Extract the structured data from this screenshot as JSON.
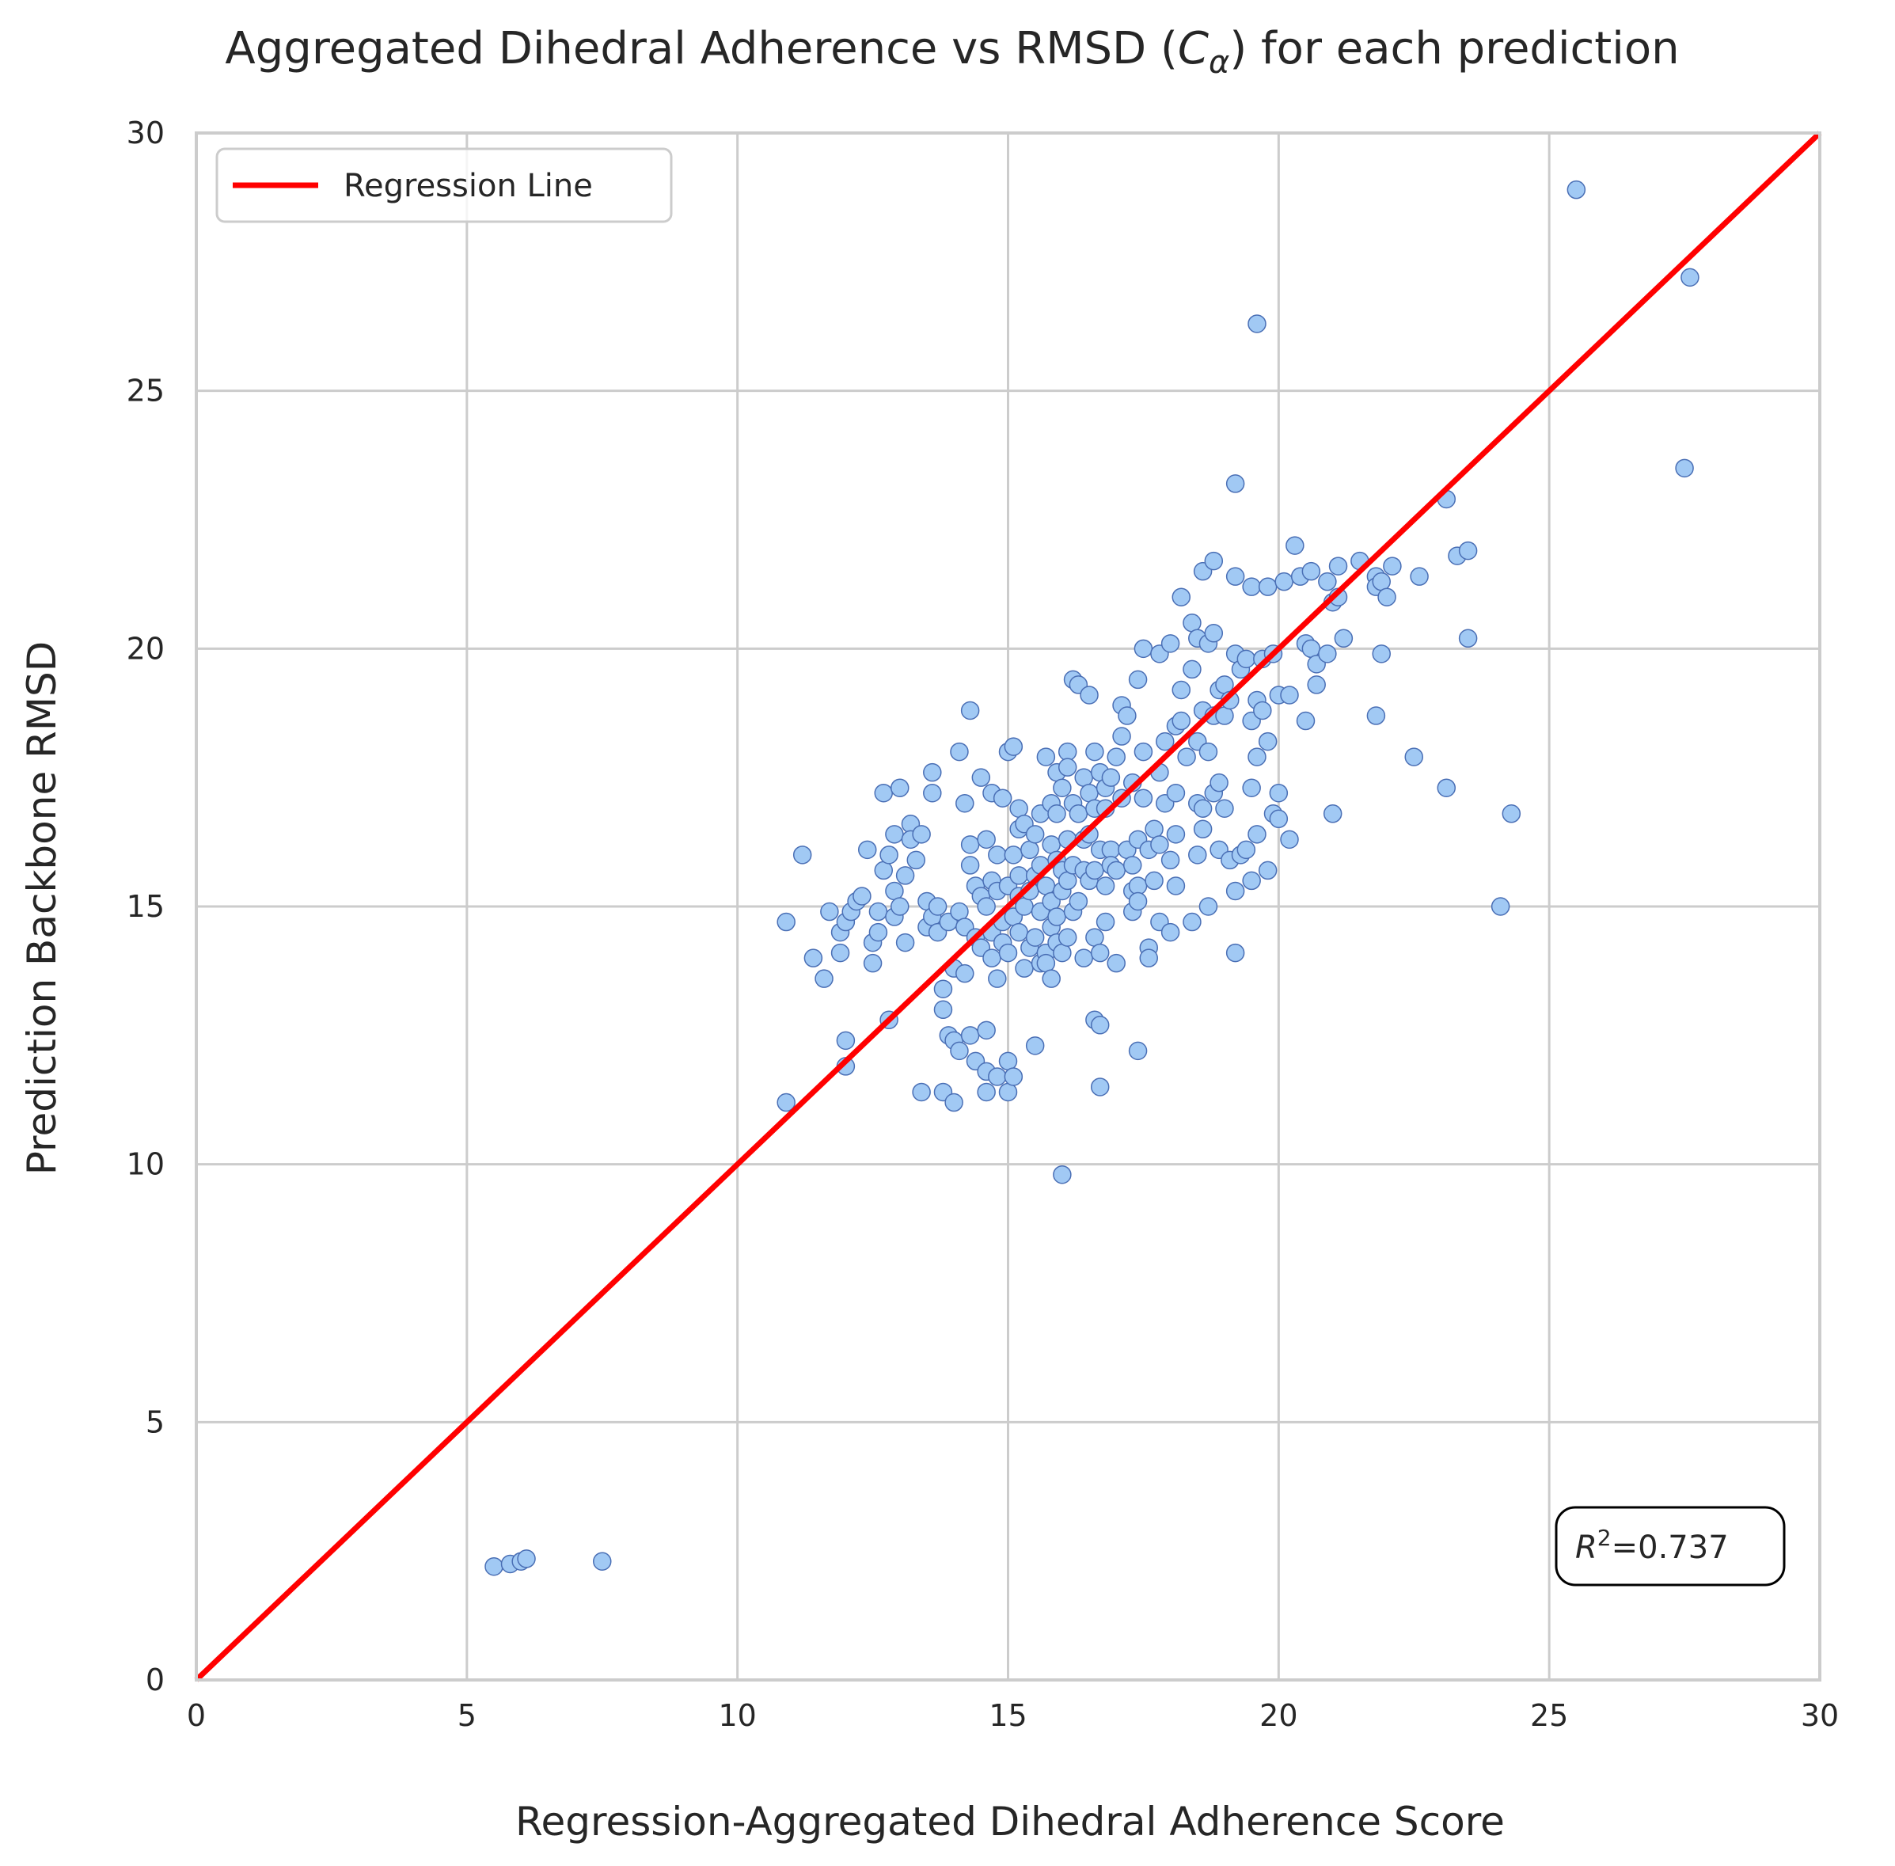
{
  "chart_data": {
    "type": "scatter",
    "title_main": "Aggregated Dihedral Adherence vs RMSD (",
    "title_math": "C",
    "title_sub": "α",
    "title_end": ") for each prediction",
    "xlabel": "Regression-Aggregated Dihedral Adherence Score",
    "ylabel": "Prediction Backbone RMSD",
    "xlim": [
      0,
      30
    ],
    "ylim": [
      0,
      30
    ],
    "xticks": [
      "0",
      "5",
      "10",
      "15",
      "20",
      "25",
      "30"
    ],
    "yticks": [
      "0",
      "5",
      "10",
      "15",
      "20",
      "25",
      "30"
    ],
    "grid": true,
    "legend": {
      "placement": "top-left",
      "label": "Regression Line"
    },
    "annotation": {
      "text_r": "R",
      "text_sup": "2",
      "text_value": "=0.737",
      "placement": "bottom-right"
    },
    "colors": {
      "points": "#a1c9f4",
      "point_edge": "#4a6fb5",
      "regression": "#ff0000",
      "grid": "#cccccc"
    },
    "regression_line": {
      "x": [
        0,
        30
      ],
      "y": [
        0,
        30
      ]
    },
    "points": [
      [
        5.5,
        2.2
      ],
      [
        5.8,
        2.25
      ],
      [
        6.0,
        2.3
      ],
      [
        6.1,
        2.35
      ],
      [
        7.5,
        2.3
      ],
      [
        10.9,
        11.2
      ],
      [
        10.9,
        14.7
      ],
      [
        11.2,
        16.0
      ],
      [
        11.4,
        14.0
      ],
      [
        11.6,
        13.6
      ],
      [
        11.7,
        14.9
      ],
      [
        11.9,
        14.5
      ],
      [
        11.9,
        14.1
      ],
      [
        12.0,
        14.7
      ],
      [
        12.0,
        12.4
      ],
      [
        12.0,
        11.9
      ],
      [
        12.1,
        14.9
      ],
      [
        12.2,
        15.1
      ],
      [
        12.3,
        15.2
      ],
      [
        12.4,
        16.1
      ],
      [
        12.5,
        14.3
      ],
      [
        12.5,
        13.9
      ],
      [
        12.6,
        14.5
      ],
      [
        12.6,
        14.9
      ],
      [
        12.7,
        17.2
      ],
      [
        12.7,
        15.7
      ],
      [
        12.8,
        16.0
      ],
      [
        12.8,
        12.8
      ],
      [
        12.9,
        16.4
      ],
      [
        12.9,
        15.3
      ],
      [
        12.9,
        14.8
      ],
      [
        13.0,
        17.3
      ],
      [
        13.0,
        15.0
      ],
      [
        13.1,
        15.6
      ],
      [
        13.1,
        14.3
      ],
      [
        13.2,
        16.6
      ],
      [
        13.2,
        16.3
      ],
      [
        13.3,
        15.9
      ],
      [
        13.4,
        16.4
      ],
      [
        13.4,
        11.4
      ],
      [
        13.5,
        15.1
      ],
      [
        13.5,
        14.6
      ],
      [
        13.6,
        17.6
      ],
      [
        13.6,
        17.2
      ],
      [
        13.6,
        14.8
      ],
      [
        13.7,
        15.0
      ],
      [
        13.7,
        14.5
      ],
      [
        13.8,
        13.4
      ],
      [
        13.8,
        13.0
      ],
      [
        13.8,
        11.4
      ],
      [
        13.9,
        12.5
      ],
      [
        13.9,
        14.7
      ],
      [
        14.0,
        12.4
      ],
      [
        14.0,
        11.2
      ],
      [
        14.0,
        13.8
      ],
      [
        14.1,
        18.0
      ],
      [
        14.1,
        14.9
      ],
      [
        14.1,
        12.2
      ],
      [
        14.2,
        17.0
      ],
      [
        14.2,
        14.6
      ],
      [
        14.2,
        13.7
      ],
      [
        14.3,
        16.2
      ],
      [
        14.3,
        15.8
      ],
      [
        14.3,
        18.8
      ],
      [
        14.3,
        12.5
      ],
      [
        14.4,
        15.4
      ],
      [
        14.4,
        14.4
      ],
      [
        14.4,
        12.0
      ],
      [
        14.5,
        17.5
      ],
      [
        14.5,
        15.2
      ],
      [
        14.5,
        14.2
      ],
      [
        14.6,
        16.3
      ],
      [
        14.6,
        15.0
      ],
      [
        14.6,
        11.8
      ],
      [
        14.6,
        12.6
      ],
      [
        14.6,
        11.4
      ],
      [
        14.7,
        17.2
      ],
      [
        14.7,
        15.5
      ],
      [
        14.7,
        14.5
      ],
      [
        14.7,
        14.0
      ],
      [
        14.8,
        16.0
      ],
      [
        14.8,
        15.3
      ],
      [
        14.8,
        13.6
      ],
      [
        14.8,
        11.7
      ],
      [
        14.9,
        17.1
      ],
      [
        14.9,
        14.3
      ],
      [
        14.9,
        14.7
      ],
      [
        15.0,
        18.0
      ],
      [
        15.0,
        15.4
      ],
      [
        15.0,
        14.1
      ],
      [
        15.0,
        12.0
      ],
      [
        15.0,
        11.4
      ],
      [
        15.1,
        18.1
      ],
      [
        15.1,
        16.0
      ],
      [
        15.1,
        14.8
      ],
      [
        15.1,
        11.7
      ],
      [
        15.2,
        16.9
      ],
      [
        15.2,
        16.5
      ],
      [
        15.2,
        15.6
      ],
      [
        15.2,
        15.2
      ],
      [
        15.2,
        14.5
      ],
      [
        15.3,
        16.6
      ],
      [
        15.3,
        15.0
      ],
      [
        15.3,
        13.8
      ],
      [
        15.4,
        16.1
      ],
      [
        15.4,
        15.3
      ],
      [
        15.4,
        14.2
      ],
      [
        15.5,
        16.4
      ],
      [
        15.5,
        15.6
      ],
      [
        15.5,
        14.4
      ],
      [
        15.5,
        12.3
      ],
      [
        15.6,
        16.8
      ],
      [
        15.6,
        15.8
      ],
      [
        15.6,
        14.9
      ],
      [
        15.6,
        13.9
      ],
      [
        15.7,
        17.9
      ],
      [
        15.7,
        15.4
      ],
      [
        15.7,
        14.1
      ],
      [
        15.7,
        13.9
      ],
      [
        15.8,
        17.0
      ],
      [
        15.8,
        16.2
      ],
      [
        15.8,
        15.1
      ],
      [
        15.8,
        14.6
      ],
      [
        15.8,
        13.6
      ],
      [
        15.9,
        17.6
      ],
      [
        15.9,
        16.8
      ],
      [
        15.9,
        15.9
      ],
      [
        15.9,
        14.8
      ],
      [
        15.9,
        14.3
      ],
      [
        16.0,
        17.3
      ],
      [
        16.0,
        15.7
      ],
      [
        16.0,
        15.3
      ],
      [
        16.0,
        14.1
      ],
      [
        16.0,
        9.8
      ],
      [
        16.1,
        18.0
      ],
      [
        16.1,
        17.7
      ],
      [
        16.1,
        16.3
      ],
      [
        16.1,
        15.5
      ],
      [
        16.1,
        14.4
      ],
      [
        16.2,
        19.4
      ],
      [
        16.2,
        17.0
      ],
      [
        16.2,
        15.8
      ],
      [
        16.2,
        14.9
      ],
      [
        16.3,
        19.3
      ],
      [
        16.3,
        16.8
      ],
      [
        16.3,
        15.1
      ],
      [
        16.4,
        17.5
      ],
      [
        16.4,
        16.3
      ],
      [
        16.4,
        15.7
      ],
      [
        16.4,
        14.0
      ],
      [
        16.5,
        19.1
      ],
      [
        16.5,
        17.2
      ],
      [
        16.5,
        16.4
      ],
      [
        16.5,
        15.5
      ],
      [
        16.6,
        18.0
      ],
      [
        16.6,
        16.9
      ],
      [
        16.6,
        15.7
      ],
      [
        16.6,
        14.4
      ],
      [
        16.6,
        12.8
      ],
      [
        16.7,
        17.6
      ],
      [
        16.7,
        16.1
      ],
      [
        16.7,
        14.1
      ],
      [
        16.7,
        12.7
      ],
      [
        16.7,
        11.5
      ],
      [
        16.8,
        17.3
      ],
      [
        16.8,
        16.9
      ],
      [
        16.8,
        15.4
      ],
      [
        16.8,
        14.7
      ],
      [
        16.9,
        17.5
      ],
      [
        16.9,
        16.1
      ],
      [
        16.9,
        15.8
      ],
      [
        17.0,
        17.9
      ],
      [
        17.0,
        15.7
      ],
      [
        17.0,
        13.9
      ],
      [
        17.1,
        18.9
      ],
      [
        17.1,
        18.3
      ],
      [
        17.1,
        17.1
      ],
      [
        17.2,
        18.7
      ],
      [
        17.2,
        16.1
      ],
      [
        17.3,
        17.4
      ],
      [
        17.3,
        15.8
      ],
      [
        17.3,
        15.3
      ],
      [
        17.3,
        14.9
      ],
      [
        17.4,
        19.4
      ],
      [
        17.4,
        16.3
      ],
      [
        17.4,
        15.4
      ],
      [
        17.4,
        15.1
      ],
      [
        17.4,
        12.2
      ],
      [
        17.5,
        20.0
      ],
      [
        17.5,
        18.0
      ],
      [
        17.5,
        17.1
      ],
      [
        17.6,
        16.1
      ],
      [
        17.6,
        14.2
      ],
      [
        17.6,
        14.0
      ],
      [
        17.7,
        16.5
      ],
      [
        17.7,
        15.5
      ],
      [
        17.8,
        19.9
      ],
      [
        17.8,
        17.6
      ],
      [
        17.8,
        16.2
      ],
      [
        17.8,
        14.7
      ],
      [
        17.9,
        18.2
      ],
      [
        17.9,
        17.0
      ],
      [
        18.0,
        20.1
      ],
      [
        18.0,
        15.9
      ],
      [
        18.0,
        14.5
      ],
      [
        18.1,
        18.5
      ],
      [
        18.1,
        17.2
      ],
      [
        18.1,
        16.4
      ],
      [
        18.1,
        15.4
      ],
      [
        18.2,
        21.0
      ],
      [
        18.2,
        19.2
      ],
      [
        18.2,
        18.6
      ],
      [
        18.3,
        17.9
      ],
      [
        18.4,
        20.5
      ],
      [
        18.4,
        19.6
      ],
      [
        18.4,
        14.7
      ],
      [
        18.5,
        20.2
      ],
      [
        18.5,
        18.2
      ],
      [
        18.5,
        17.0
      ],
      [
        18.5,
        16.0
      ],
      [
        18.6,
        21.5
      ],
      [
        18.6,
        18.8
      ],
      [
        18.6,
        16.9
      ],
      [
        18.6,
        16.5
      ],
      [
        18.7,
        20.1
      ],
      [
        18.7,
        18.0
      ],
      [
        18.7,
        15.0
      ],
      [
        18.8,
        21.7
      ],
      [
        18.8,
        20.3
      ],
      [
        18.8,
        18.7
      ],
      [
        18.8,
        17.2
      ],
      [
        18.9,
        19.2
      ],
      [
        18.9,
        17.4
      ],
      [
        18.9,
        16.1
      ],
      [
        19.0,
        19.3
      ],
      [
        19.0,
        18.7
      ],
      [
        19.0,
        16.9
      ],
      [
        19.1,
        19.0
      ],
      [
        19.1,
        15.9
      ],
      [
        19.2,
        23.2
      ],
      [
        19.2,
        21.4
      ],
      [
        19.2,
        19.9
      ],
      [
        19.2,
        15.3
      ],
      [
        19.2,
        14.1
      ],
      [
        19.3,
        19.6
      ],
      [
        19.3,
        16.0
      ],
      [
        19.4,
        19.8
      ],
      [
        19.4,
        16.1
      ],
      [
        19.5,
        21.2
      ],
      [
        19.5,
        18.6
      ],
      [
        19.5,
        17.3
      ],
      [
        19.5,
        15.5
      ],
      [
        19.6,
        26.3
      ],
      [
        19.6,
        19.0
      ],
      [
        19.6,
        17.9
      ],
      [
        19.6,
        16.4
      ],
      [
        19.7,
        19.8
      ],
      [
        19.7,
        18.8
      ],
      [
        19.8,
        21.2
      ],
      [
        19.8,
        18.2
      ],
      [
        19.8,
        15.7
      ],
      [
        19.9,
        19.9
      ],
      [
        19.9,
        16.8
      ],
      [
        20.0,
        19.1
      ],
      [
        20.0,
        17.2
      ],
      [
        20.0,
        16.7
      ],
      [
        20.1,
        21.3
      ],
      [
        20.2,
        19.1
      ],
      [
        20.2,
        16.3
      ],
      [
        20.3,
        22.0
      ],
      [
        20.4,
        21.4
      ],
      [
        20.5,
        20.1
      ],
      [
        20.5,
        18.6
      ],
      [
        20.6,
        21.5
      ],
      [
        20.6,
        20.0
      ],
      [
        20.7,
        19.7
      ],
      [
        20.7,
        19.3
      ],
      [
        20.9,
        21.3
      ],
      [
        20.9,
        19.9
      ],
      [
        21.0,
        20.9
      ],
      [
        21.0,
        16.8
      ],
      [
        21.1,
        21.6
      ],
      [
        21.1,
        21.0
      ],
      [
        21.2,
        20.2
      ],
      [
        21.5,
        21.7
      ],
      [
        21.8,
        21.4
      ],
      [
        21.8,
        21.2
      ],
      [
        21.8,
        18.7
      ],
      [
        21.9,
        21.3
      ],
      [
        21.9,
        19.9
      ],
      [
        22.0,
        21.0
      ],
      [
        22.1,
        21.6
      ],
      [
        22.5,
        17.9
      ],
      [
        22.6,
        21.4
      ],
      [
        23.1,
        22.9
      ],
      [
        23.1,
        17.3
      ],
      [
        23.3,
        21.8
      ],
      [
        23.5,
        21.9
      ],
      [
        23.5,
        20.2
      ],
      [
        24.1,
        15.0
      ],
      [
        24.3,
        16.8
      ],
      [
        25.5,
        28.9
      ],
      [
        27.5,
        23.5
      ],
      [
        27.6,
        27.2
      ]
    ]
  }
}
